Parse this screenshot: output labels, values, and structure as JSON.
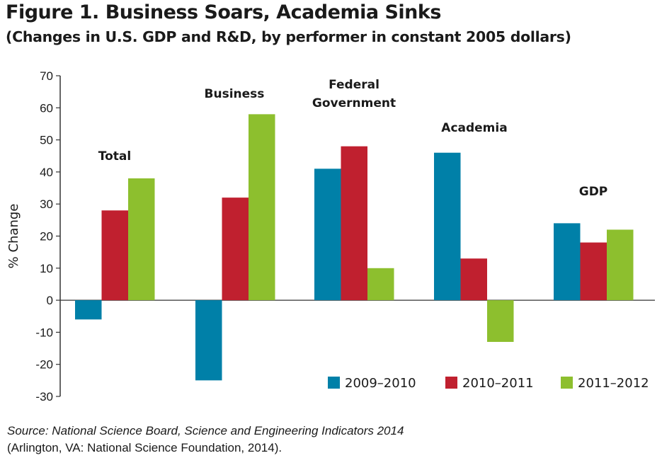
{
  "chart_data": {
    "type": "bar",
    "title": "Figure 1. Business Soars, Academia Sinks",
    "subtitle": "(Changes in U.S. GDP and R&D, by performer in constant 2005 dollars)",
    "ylabel": "% Change",
    "xlabel": "",
    "ylim": [
      -30,
      70
    ],
    "yticks": [
      -30,
      -20,
      -10,
      0,
      10,
      20,
      30,
      40,
      50,
      60,
      70
    ],
    "categories": [
      [
        "Total"
      ],
      [
        "Business"
      ],
      [
        "Federal",
        "Government"
      ],
      [
        "Academia"
      ],
      [
        "GDP"
      ]
    ],
    "series": [
      {
        "name": "2009–2010",
        "color": "#0080a8",
        "values": [
          -6,
          -25,
          41,
          46,
          24
        ]
      },
      {
        "name": "2010–2011",
        "color": "#c0202f",
        "values": [
          28,
          32,
          48,
          13,
          18
        ]
      },
      {
        "name": "2011–2012",
        "color": "#8dbf2e",
        "values": [
          38,
          58,
          10,
          -13,
          22
        ]
      }
    ],
    "legend_position": "bottom-right",
    "grid": false
  },
  "source": {
    "citation": "Source: National Science Board, Science and Engineering Indicators 2014",
    "publisher": "(Arlington, VA: National Science Foundation, 2014)."
  }
}
